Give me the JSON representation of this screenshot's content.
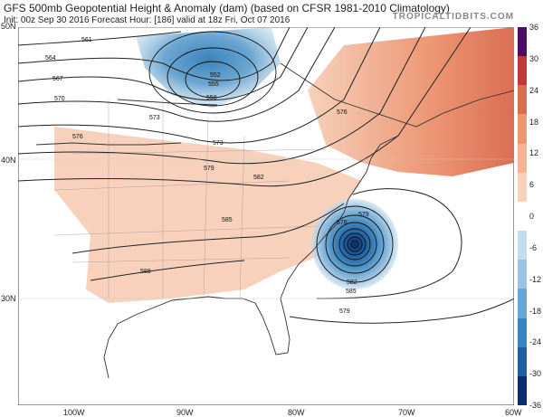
{
  "header": {
    "title": "GFS 500mb Geopotential Height & Anomaly (dam) (based on CFSR 1981-2010 Climatology)",
    "subtitle": "Init: 00z Sep 30 2016   Forecast Hour: [186]   valid at 18z Fri, Oct 07 2016",
    "brand": "TROPICALTIDBITS.COM"
  },
  "colorbar": {
    "labels": [
      "36",
      "30",
      "24",
      "18",
      "12",
      "6",
      "0",
      "-6",
      "-12",
      "-18",
      "-24",
      "-30",
      "-36"
    ],
    "values": [
      36,
      30,
      24,
      18,
      12,
      6,
      0,
      -6,
      -12,
      -18,
      -24,
      -30,
      -36
    ],
    "colors": [
      "#4a0e63",
      "#c1373a",
      "#da6e53",
      "#ec9674",
      "#f3b493",
      "#f7d1bb",
      "#ffffff",
      "#c5dcec",
      "#9cc4e2",
      "#6ca6d2",
      "#3c83bb",
      "#225ea0",
      "#0b2d6b"
    ]
  },
  "axes": {
    "lat_labels": [
      "50N",
      "40N",
      "30N"
    ],
    "lon_labels": [
      "100W",
      "90W",
      "80W",
      "70W",
      "60W"
    ]
  },
  "contours": {
    "labels": [
      "561",
      "564",
      "567",
      "570",
      "573",
      "576",
      "579",
      "582",
      "585",
      "588",
      "558",
      "555",
      "552",
      "573",
      "576",
      "579",
      "582",
      "585",
      "579",
      "576"
    ]
  },
  "map_features": {
    "low_center": "deep closed low off the Carolina coast",
    "trough": "upper trough over Great Lakes"
  }
}
